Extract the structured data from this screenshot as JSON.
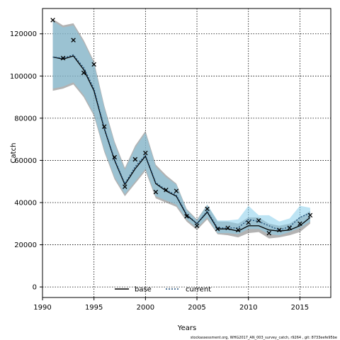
{
  "chart_data": {
    "type": "line",
    "xlabel": "Years",
    "ylabel": "Catch",
    "xlim": [
      1990,
      2018
    ],
    "ylim": [
      -5000,
      132000
    ],
    "xticks": [
      1990,
      1995,
      2000,
      2005,
      2010,
      2015
    ],
    "yticks": [
      0,
      20000,
      40000,
      60000,
      80000,
      100000,
      120000
    ],
    "grid": true,
    "legend_placement": "bottom-center",
    "observed_marker": "x",
    "observed": {
      "x": [
        1991,
        1992,
        1993,
        1994,
        1995,
        1996,
        1997,
        1998,
        1999,
        2000,
        2001,
        2002,
        2003,
        2004,
        2005,
        2006,
        2007,
        2008,
        2009,
        2010,
        2011,
        2012,
        2013,
        2014,
        2015,
        2016
      ],
      "y": [
        126500,
        108500,
        117000,
        101500,
        105500,
        76000,
        61500,
        47500,
        60500,
        63500,
        45000,
        46000,
        45500,
        33500,
        29000,
        37000,
        27500,
        28000,
        27000,
        30500,
        31500,
        25500,
        27000,
        28000,
        30000,
        34000
      ]
    },
    "series": [
      {
        "name": "base",
        "color": "#000000",
        "band_color": "#808080",
        "x": [
          1991,
          1992,
          1993,
          1994,
          1995,
          1996,
          1997,
          1998,
          1999,
          2000,
          2001,
          2002,
          2003,
          2004,
          2005,
          2006,
          2007,
          2008,
          2009,
          2010,
          2011,
          2012,
          2013,
          2014,
          2015,
          2016
        ],
        "y": [
          109000,
          108000,
          109500,
          103000,
          93000,
          75000,
          60000,
          48500,
          56000,
          62000,
          49000,
          45500,
          43000,
          34000,
          30000,
          35500,
          27500,
          27500,
          26500,
          29000,
          29000,
          27000,
          26500,
          27000,
          29000,
          33000
        ],
        "upper": [
          127000,
          124000,
          125000,
          117000,
          107000,
          86000,
          69000,
          56500,
          67000,
          74000,
          58000,
          53000,
          49000,
          37000,
          32000,
          39000,
          31000,
          31000,
          30000,
          33000,
          33000,
          30000,
          29000,
          30000,
          33000,
          36000
        ],
        "lower": [
          93000,
          94000,
          96000,
          90000,
          81000,
          64000,
          51000,
          43000,
          49000,
          55000,
          42000,
          40000,
          38000,
          31000,
          27000,
          32000,
          25000,
          24500,
          23500,
          25500,
          26000,
          23000,
          23500,
          24500,
          26000,
          30000
        ]
      },
      {
        "name": "current",
        "color": "#1f4e79",
        "band_color": "#87ceeb",
        "x": [
          1991,
          1992,
          1993,
          1994,
          1995,
          1996,
          1997,
          1998,
          1999,
          2000,
          2001,
          2002,
          2003,
          2004,
          2005,
          2006,
          2007,
          2008,
          2009,
          2010,
          2011,
          2012,
          2013,
          2014,
          2015,
          2016
        ],
        "y": [
          109000,
          108500,
          110000,
          104000,
          94000,
          75500,
          60500,
          49000,
          57000,
          62500,
          49500,
          46000,
          43500,
          34500,
          30000,
          36000,
          28000,
          28000,
          28000,
          32000,
          31000,
          29000,
          27000,
          28500,
          33000,
          35000
        ],
        "upper": [
          126000,
          123000,
          124000,
          116000,
          106000,
          85000,
          68000,
          55500,
          66000,
          73000,
          57000,
          52000,
          48500,
          36500,
          31500,
          39000,
          31500,
          31500,
          32000,
          38500,
          34000,
          34000,
          31000,
          32500,
          38500,
          37500
        ],
        "lower": [
          94000,
          95000,
          97000,
          91000,
          82000,
          65000,
          52000,
          44000,
          50000,
          56000,
          43000,
          41000,
          39000,
          32000,
          28000,
          33000,
          25500,
          25500,
          25000,
          27500,
          27500,
          25000,
          24500,
          26000,
          28000,
          31000
        ]
      }
    ]
  },
  "footnote": "stockassessment.org, WHG2017_AN_003_survey_catch, r9264 , git: 8733eefe95be"
}
